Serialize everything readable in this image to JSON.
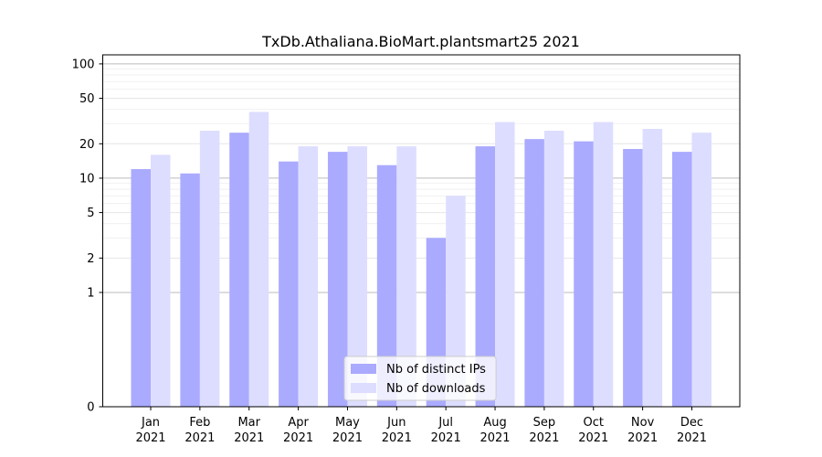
{
  "chart_data": {
    "type": "bar",
    "title": "TxDb.Athaliana.BioMart.plantsmart25 2021",
    "xlabel": "",
    "ylabel": "",
    "y_scale": "symlog",
    "ylim": [
      0,
      120
    ],
    "grid": true,
    "legend_position": "bottom-center",
    "categories": [
      [
        "Jan",
        "2021"
      ],
      [
        "Feb",
        "2021"
      ],
      [
        "Mar",
        "2021"
      ],
      [
        "Apr",
        "2021"
      ],
      [
        "May",
        "2021"
      ],
      [
        "Jun",
        "2021"
      ],
      [
        "Jul",
        "2021"
      ],
      [
        "Aug",
        "2021"
      ],
      [
        "Sep",
        "2021"
      ],
      [
        "Oct",
        "2021"
      ],
      [
        "Nov",
        "2021"
      ],
      [
        "Dec",
        "2021"
      ]
    ],
    "y_ticks": [
      0,
      1,
      2,
      5,
      10,
      20,
      50,
      100
    ],
    "series": [
      {
        "name": "Nb of distinct IPs",
        "color": "#aaaaff",
        "values": [
          12,
          11,
          25,
          14,
          17,
          13,
          3,
          19,
          22,
          21,
          18,
          17
        ]
      },
      {
        "name": "Nb of downloads",
        "color": "#ddddff",
        "values": [
          16,
          26,
          38,
          19,
          19,
          19,
          7,
          31,
          26,
          31,
          27,
          25
        ]
      }
    ]
  }
}
